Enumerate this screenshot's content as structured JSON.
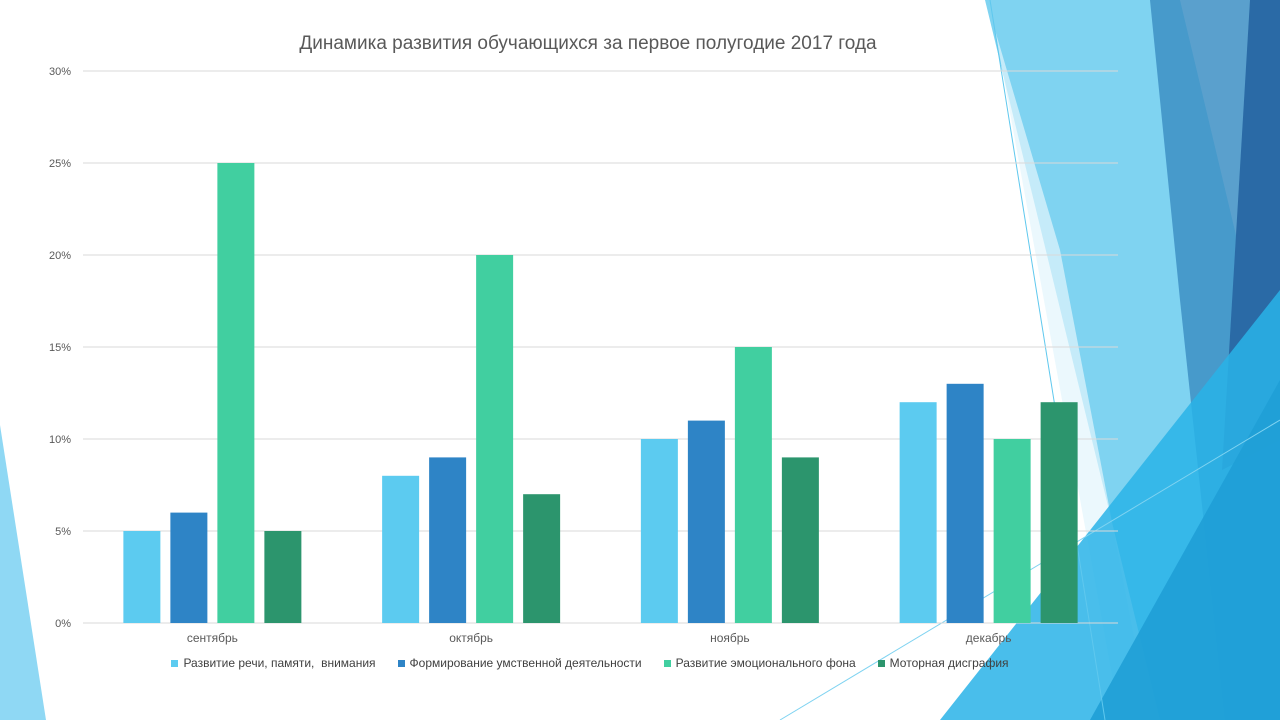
{
  "colors": {
    "series": [
      "#5ccbf0",
      "#2e84c6",
      "#41cfa0",
      "#2c956d"
    ],
    "grid": "#d9d9d9",
    "text": "#595959"
  },
  "chart_data": {
    "type": "bar",
    "title": "Динамика развития обучающихся за первое полугодие 2017 года",
    "categories": [
      "сентябрь",
      "октябрь",
      "ноябрь",
      "декабрь"
    ],
    "series": [
      {
        "name": "Развитие речи, памяти,  внимания",
        "values": [
          5,
          8,
          10,
          12
        ]
      },
      {
        "name": "Формирование умственной деятельности",
        "values": [
          6,
          9,
          11,
          13
        ]
      },
      {
        "name": "Развитие эмоционального фона",
        "values": [
          25,
          20,
          15,
          10
        ]
      },
      {
        "name": "Моторная дисграфия",
        "values": [
          5,
          7,
          9,
          12
        ]
      }
    ],
    "y_ticks": [
      "0%",
      "5%",
      "10%",
      "15%",
      "20%",
      "25%",
      "30%"
    ],
    "ylim": [
      0,
      30
    ],
    "grid": true,
    "legend": "bottom",
    "xlabel": "",
    "ylabel": ""
  }
}
